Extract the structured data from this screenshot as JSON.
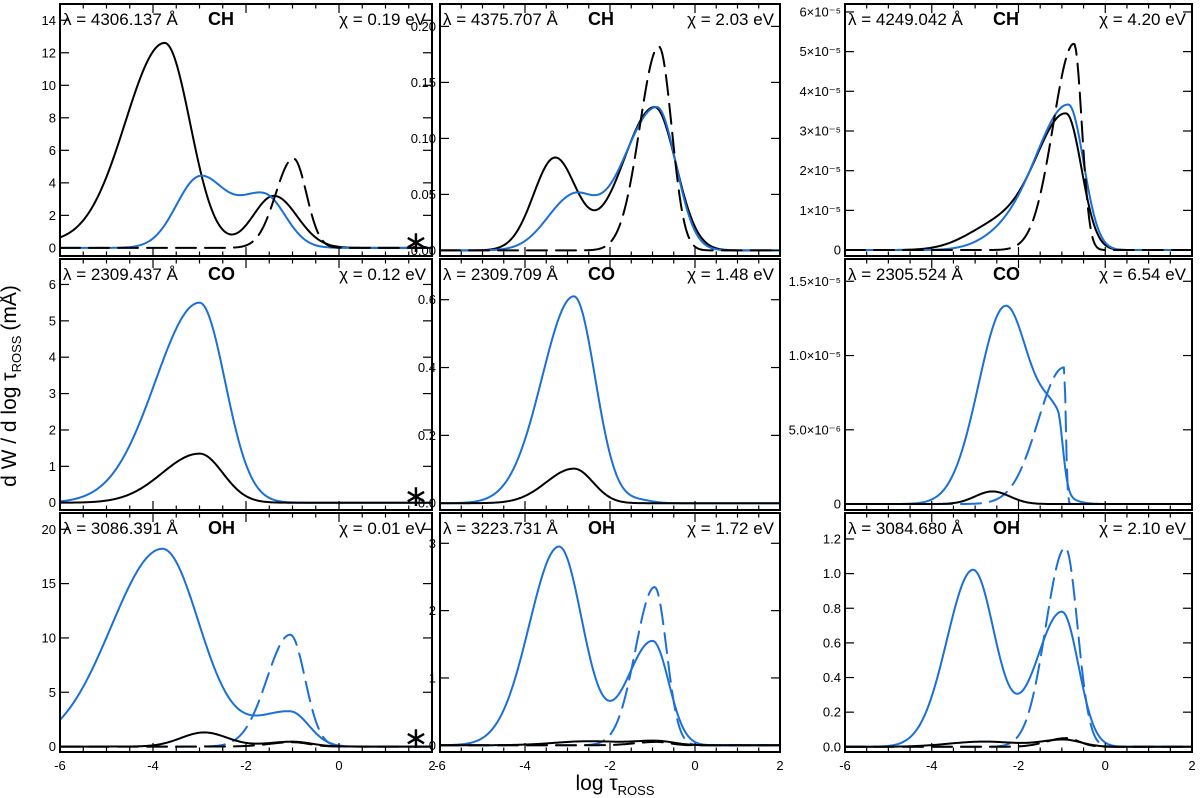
{
  "figure": {
    "ylabel": "d W / d log τ",
    "ylabel_sub": "ROSS",
    "ylabel_unit": "(mÅ)",
    "xlabel": "log τ",
    "xlabel_sub": "ROSS",
    "star_symbol": "∗"
  },
  "colors": {
    "black_series": "#000000",
    "blue_series": "#1a6fd9"
  },
  "chart_data": [
    {
      "type": "line",
      "row": 0,
      "col": 0,
      "lambda_label": "λ = 4306.137 Å",
      "molecule": "CH",
      "chi_label": "χ =  0.19 eV",
      "star": true,
      "xlim": [
        -6,
        2
      ],
      "ylim": [
        -0.5,
        15
      ],
      "xticks": [
        {
          "v": -6,
          "label": "-6"
        },
        {
          "v": -4,
          "label": "-4"
        },
        {
          "v": -2,
          "label": "-2"
        },
        {
          "v": 0,
          "label": "0"
        },
        {
          "v": 2,
          "label": "2"
        }
      ],
      "yticks": [
        {
          "v": 0,
          "label": "0"
        },
        {
          "v": 2,
          "label": "2"
        },
        {
          "v": 4,
          "label": "4"
        },
        {
          "v": 6,
          "label": "6"
        },
        {
          "v": 8,
          "label": "8"
        },
        {
          "v": 10,
          "label": "10"
        },
        {
          "v": 12,
          "label": "12"
        },
        {
          "v": 14,
          "label": "14"
        }
      ],
      "series": [
        {
          "name": "black solid",
          "color": "black",
          "dashed": false,
          "comps": [
            [
              12.6,
              -3.75,
              0.85,
              0.55
            ],
            [
              3.2,
              -1.4,
              0.45,
              0.5
            ],
            [
              0.3,
              -6.5,
              1.0
            ]
          ]
        },
        {
          "name": "blue solid",
          "color": "blue",
          "dashed": false,
          "comps": [
            [
              4.3,
              -3.0,
              0.5,
              0.55
            ],
            [
              3.2,
              -1.6,
              0.55,
              0.45
            ]
          ]
        },
        {
          "name": "black dashed",
          "color": "black",
          "dashed": true,
          "comps": [
            [
              5.5,
              -0.98,
              0.38,
              0.28
            ]
          ]
        }
      ]
    },
    {
      "type": "line",
      "row": 0,
      "col": 1,
      "lambda_label": "λ = 4375.707 Å",
      "molecule": "CH",
      "chi_label": "χ =  2.03 eV",
      "star": false,
      "xlim": [
        -6,
        2
      ],
      "ylim": [
        -0.005,
        0.22
      ],
      "xticks": [
        {
          "v": -6,
          "label": "-6"
        },
        {
          "v": -4,
          "label": "-4"
        },
        {
          "v": -2,
          "label": "-2"
        },
        {
          "v": 0,
          "label": "0"
        },
        {
          "v": 2,
          "label": "2"
        }
      ],
      "yticks": [
        {
          "v": 0,
          "label": "0.00"
        },
        {
          "v": 0.05,
          "label": "0.05"
        },
        {
          "v": 0.1,
          "label": "0.10"
        },
        {
          "v": 0.15,
          "label": "0.15"
        },
        {
          "v": 0.2,
          "label": "0.20"
        }
      ],
      "series": [
        {
          "name": "black solid",
          "color": "black",
          "dashed": false,
          "comps": [
            [
              0.082,
              -3.3,
              0.5,
              0.5
            ],
            [
              0.128,
              -0.95,
              0.75,
              0.5
            ]
          ]
        },
        {
          "name": "blue solid",
          "color": "blue",
          "dashed": false,
          "comps": [
            [
              0.045,
              -2.9,
              0.6,
              0.5
            ],
            [
              0.128,
              -0.9,
              0.8,
              0.45
            ]
          ]
        },
        {
          "name": "black dashed",
          "color": "black",
          "dashed": true,
          "comps": [
            [
              0.182,
              -0.85,
              0.45,
              0.3
            ]
          ]
        }
      ]
    },
    {
      "type": "line",
      "row": 0,
      "col": 2,
      "lambda_label": "λ = 4249.042 Å",
      "molecule": "CH",
      "chi_label": "χ =  4.20 eV",
      "star": false,
      "xlim": [
        -6,
        2
      ],
      "ylim": [
        -1.5e-06,
        6.2e-05
      ],
      "xticks": [
        {
          "v": -6,
          "label": "-6"
        },
        {
          "v": -4,
          "label": "-4"
        },
        {
          "v": -2,
          "label": "-2"
        },
        {
          "v": 0,
          "label": "0"
        },
        {
          "v": 2,
          "label": "2"
        }
      ],
      "yticks": [
        {
          "v": 0,
          "label": "0"
        },
        {
          "v": 1e-05,
          "label": "1×10⁻⁵"
        },
        {
          "v": 2e-05,
          "label": "2×10⁻⁵"
        },
        {
          "v": 3e-05,
          "label": "3×10⁻⁵"
        },
        {
          "v": 4e-05,
          "label": "4×10⁻⁵"
        },
        {
          "v": 5e-05,
          "label": "5×10⁻⁵"
        },
        {
          "v": 6e-05,
          "label": "6×10⁻⁵"
        }
      ],
      "series": [
        {
          "name": "black solid",
          "color": "black",
          "dashed": false,
          "comps": [
            [
              6e-06,
              -2.5,
              0.7,
              0.7
            ],
            [
              3.4e-05,
              -0.9,
              0.7,
              0.35
            ]
          ]
        },
        {
          "name": "blue solid",
          "color": "blue",
          "dashed": false,
          "comps": [
            [
              3e-06,
              -2.3,
              0.6,
              0.6
            ],
            [
              3.65e-05,
              -0.85,
              0.75,
              0.35
            ]
          ]
        },
        {
          "name": "black dashed",
          "color": "black",
          "dashed": true,
          "comps": [
            [
              5.2e-05,
              -0.72,
              0.48,
              0.18
            ]
          ]
        }
      ]
    },
    {
      "type": "line",
      "row": 1,
      "col": 0,
      "lambda_label": "λ = 2309.437 Å",
      "molecule": "CO",
      "chi_label": "χ =  0.12 eV",
      "star": true,
      "xlim": [
        -6,
        2
      ],
      "ylim": [
        -0.2,
        6.7
      ],
      "xticks": [
        {
          "v": -6,
          "label": "-6"
        },
        {
          "v": -4,
          "label": "-4"
        },
        {
          "v": -2,
          "label": "-2"
        },
        {
          "v": 0,
          "label": "0"
        },
        {
          "v": 2,
          "label": "2"
        }
      ],
      "yticks": [
        {
          "v": 0,
          "label": "0"
        },
        {
          "v": 1,
          "label": "1"
        },
        {
          "v": 2,
          "label": "2"
        },
        {
          "v": 3,
          "label": "3"
        },
        {
          "v": 4,
          "label": "4"
        },
        {
          "v": 5,
          "label": "5"
        },
        {
          "v": 6,
          "label": "6"
        }
      ],
      "series": [
        {
          "name": "blue solid",
          "color": "blue",
          "dashed": false,
          "comps": [
            [
              5.5,
              -3.0,
              0.95,
              0.55
            ]
          ]
        },
        {
          "name": "black solid",
          "color": "black",
          "dashed": false,
          "comps": [
            [
              1.35,
              -3.0,
              0.8,
              0.5
            ]
          ]
        }
      ]
    },
    {
      "type": "line",
      "row": 1,
      "col": 1,
      "lambda_label": "λ = 2309.709 Å",
      "molecule": "CO",
      "chi_label": "χ =  1.48 eV",
      "star": false,
      "xlim": [
        -6,
        2
      ],
      "ylim": [
        -0.02,
        0.72
      ],
      "xticks": [
        {
          "v": -6,
          "label": "-6"
        },
        {
          "v": -4,
          "label": "-4"
        },
        {
          "v": -2,
          "label": "-2"
        },
        {
          "v": 0,
          "label": "0"
        },
        {
          "v": 2,
          "label": "2"
        }
      ],
      "yticks": [
        {
          "v": 0,
          "label": "0.0"
        },
        {
          "v": 0.2,
          "label": "0.2"
        },
        {
          "v": 0.4,
          "label": "0.4"
        },
        {
          "v": 0.6,
          "label": "0.6"
        }
      ],
      "series": [
        {
          "name": "blue solid",
          "color": "blue",
          "dashed": false,
          "comps": [
            [
              0.61,
              -2.85,
              0.75,
              0.5
            ],
            [
              0.008,
              -1.3,
              0.3
            ]
          ]
        },
        {
          "name": "black solid",
          "color": "black",
          "dashed": false,
          "comps": [
            [
              0.102,
              -2.85,
              0.65,
              0.45
            ]
          ]
        }
      ]
    },
    {
      "type": "line",
      "row": 1,
      "col": 2,
      "lambda_label": "λ = 2305.524 Å",
      "molecule": "CO",
      "chi_label": "χ =  6.54 eV",
      "star": false,
      "xlim": [
        -6,
        2
      ],
      "ylim": [
        -4e-07,
        1.65e-05
      ],
      "xticks": [
        {
          "v": -6,
          "label": "-6"
        },
        {
          "v": -4,
          "label": "-4"
        },
        {
          "v": -2,
          "label": "-2"
        },
        {
          "v": 0,
          "label": "0"
        },
        {
          "v": 2,
          "label": "2"
        }
      ],
      "yticks": [
        {
          "v": 0,
          "label": "0"
        },
        {
          "v": 5e-06,
          "label": "5.0×10⁻⁶"
        },
        {
          "v": 1e-05,
          "label": "1.0×10⁻⁵"
        },
        {
          "v": 1.5e-05,
          "label": "1.5×10⁻⁵"
        }
      ],
      "series": [
        {
          "name": "blue solid",
          "color": "blue",
          "dashed": false,
          "comps": [
            [
              1.33e-05,
              -2.3,
              0.62,
              0.58
            ],
            [
              4.8e-06,
              -1.1,
              0.4,
              0.12
            ]
          ]
        },
        {
          "name": "blue dashed",
          "color": "blue",
          "dashed": true,
          "comps": [
            [
              9.2e-06,
              -0.95,
              0.6,
              0.04
            ]
          ]
        },
        {
          "name": "black solid",
          "color": "black",
          "dashed": false,
          "comps": [
            [
              8.5e-07,
              -2.6,
              0.4,
              0.4
            ]
          ]
        }
      ]
    },
    {
      "type": "line",
      "row": 2,
      "col": 0,
      "lambda_label": "λ = 3086.391 Å",
      "molecule": "OH",
      "chi_label": "χ =  0.01 eV",
      "star": true,
      "xlim": [
        -6,
        2
      ],
      "ylim": [
        -0.5,
        21.5
      ],
      "xticks": [
        {
          "v": -6,
          "label": "-6"
        },
        {
          "v": -4,
          "label": "-4"
        },
        {
          "v": -2,
          "label": "-2"
        },
        {
          "v": 0,
          "label": "0"
        },
        {
          "v": 2,
          "label": "2"
        }
      ],
      "yticks": [
        {
          "v": 0,
          "label": "0"
        },
        {
          "v": 5,
          "label": "5"
        },
        {
          "v": 10,
          "label": "10"
        },
        {
          "v": 15,
          "label": "15"
        },
        {
          "v": 20,
          "label": "20"
        }
      ],
      "series": [
        {
          "name": "blue solid",
          "color": "blue",
          "dashed": false,
          "comps": [
            [
              18.2,
              -3.8,
              1.1,
              0.8
            ],
            [
              3.2,
              -1.05,
              0.8,
              0.4
            ]
          ]
        },
        {
          "name": "blue dashed",
          "color": "blue",
          "dashed": true,
          "comps": [
            [
              10.3,
              -1.05,
              0.5,
              0.32
            ]
          ]
        },
        {
          "name": "black solid",
          "color": "black",
          "dashed": false,
          "comps": [
            [
              1.3,
              -2.9,
              0.5,
              0.5
            ],
            [
              0.45,
              -1.0,
              0.55,
              0.4
            ]
          ]
        },
        {
          "name": "black dashed",
          "color": "black",
          "dashed": true,
          "comps": [
            [
              0.4,
              -1.0,
              0.5,
              0.35
            ]
          ]
        }
      ]
    },
    {
      "type": "line",
      "row": 2,
      "col": 1,
      "lambda_label": "λ = 3223.731 Å",
      "molecule": "OH",
      "chi_label": "χ =  1.72 eV",
      "star": false,
      "xlim": [
        -6,
        2
      ],
      "ylim": [
        -0.1,
        3.45
      ],
      "xticks": [
        {
          "v": -6,
          "label": "-6"
        },
        {
          "v": -4,
          "label": "-4"
        },
        {
          "v": -2,
          "label": "-2"
        },
        {
          "v": 0,
          "label": "0"
        },
        {
          "v": 2,
          "label": "2"
        }
      ],
      "yticks": [
        {
          "v": 0,
          "label": "0"
        },
        {
          "v": 1,
          "label": "1"
        },
        {
          "v": 2,
          "label": "2"
        },
        {
          "v": 3,
          "label": "3"
        }
      ],
      "series": [
        {
          "name": "blue solid",
          "color": "blue",
          "dashed": false,
          "comps": [
            [
              2.95,
              -3.2,
              0.7,
              0.55
            ],
            [
              1.55,
              -1.0,
              0.6,
              0.38
            ]
          ]
        },
        {
          "name": "blue dashed",
          "color": "blue",
          "dashed": true,
          "comps": [
            [
              2.35,
              -0.95,
              0.45,
              0.28
            ]
          ]
        },
        {
          "name": "black solid",
          "color": "black",
          "dashed": false,
          "comps": [
            [
              0.06,
              -2.5,
              0.8,
              0.8
            ],
            [
              0.06,
              -0.9,
              0.5,
              0.4
            ]
          ]
        },
        {
          "name": "black dashed",
          "color": "black",
          "dashed": true,
          "comps": [
            [
              0.05,
              -0.9,
              0.5,
              0.3
            ]
          ]
        }
      ]
    },
    {
      "type": "line",
      "row": 2,
      "col": 2,
      "lambda_label": "λ = 3084.680 Å",
      "molecule": "OH",
      "chi_label": "χ =  2.10 eV",
      "star": false,
      "xlim": [
        -6,
        2
      ],
      "ylim": [
        -0.03,
        1.35
      ],
      "xticks": [
        {
          "v": -6,
          "label": "-6"
        },
        {
          "v": -4,
          "label": "-4"
        },
        {
          "v": -2,
          "label": "-2"
        },
        {
          "v": 0,
          "label": "0"
        },
        {
          "v": 2,
          "label": "2"
        }
      ],
      "yticks": [
        {
          "v": 0,
          "label": "0.0"
        },
        {
          "v": 0.2,
          "label": "0.2"
        },
        {
          "v": 0.4,
          "label": "0.4"
        },
        {
          "v": 0.6,
          "label": "0.6"
        },
        {
          "v": 0.8,
          "label": "0.8"
        },
        {
          "v": 1.0,
          "label": "1.0"
        },
        {
          "v": 1.2,
          "label": "1.2"
        }
      ],
      "series": [
        {
          "name": "blue solid",
          "color": "blue",
          "dashed": false,
          "comps": [
            [
              1.02,
              -3.05,
              0.6,
              0.5
            ],
            [
              0.78,
              -1.0,
              0.6,
              0.38
            ]
          ]
        },
        {
          "name": "blue dashed",
          "color": "blue",
          "dashed": true,
          "comps": [
            [
              1.15,
              -0.92,
              0.45,
              0.28
            ]
          ]
        },
        {
          "name": "black solid",
          "color": "black",
          "dashed": false,
          "comps": [
            [
              0.03,
              -2.8,
              0.8,
              0.8
            ],
            [
              0.04,
              -0.95,
              0.5,
              0.4
            ]
          ]
        },
        {
          "name": "black dashed",
          "color": "black",
          "dashed": true,
          "comps": [
            [
              0.05,
              -0.9,
              0.45,
              0.3
            ]
          ]
        }
      ]
    }
  ]
}
